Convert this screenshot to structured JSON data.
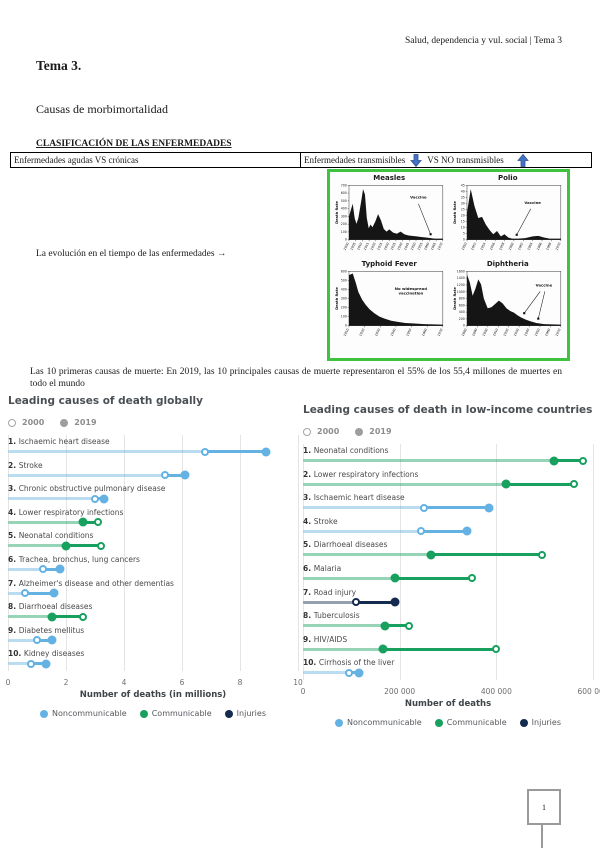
{
  "page": {
    "header": "Salud, dependencia y vul. social | Tema 3",
    "title": "Tema 3.",
    "subtitle": "Causas de morbimortalidad",
    "section_heading": "CLASIFICACIÓN DE LAS ENFERMEDADES",
    "classification_table": {
      "left_cell": "Enfermedades agudas VS crónicas",
      "right_cell_part1": "Enfermedades transmisibles",
      "right_cell_part2": "VS NO transmisibles"
    },
    "evolution_note": "La evolución en el tiempo de las enfermedades →",
    "intro_paragraph": "Las 10 primeras causas de muerte: En 2019, las 10 principales causas de muerte representaron el 55% de los 55,4 millones de muertes en todo el mundo",
    "page_number": "1",
    "arrow_color": "#4472c4"
  },
  "epidemic_figure": {
    "border_color": "#3fc23f",
    "charts": [
      {
        "title": "Measles",
        "ylabel": "Death Rate",
        "annotation": "Vaccine",
        "ann_pos": [
          74,
          76
        ],
        "arrows": [
          [
            74,
            66,
            87,
            10
          ]
        ],
        "yticks": [
          "0",
          "100",
          "200",
          "300",
          "400",
          "500",
          "600",
          "700"
        ],
        "xticks": [
          "1900",
          "1905",
          "1910",
          "1915",
          "1920",
          "1925",
          "1930",
          "1935",
          "1940",
          "1945",
          "1950",
          "1955",
          "1960",
          "1965",
          "1970"
        ],
        "points": [
          [
            0,
            43
          ],
          [
            2,
            55
          ],
          [
            4,
            66
          ],
          [
            6,
            40
          ],
          [
            8,
            29
          ],
          [
            10,
            40
          ],
          [
            13,
            70
          ],
          [
            15,
            93
          ],
          [
            17,
            83
          ],
          [
            19,
            40
          ],
          [
            21,
            21
          ],
          [
            23,
            28
          ],
          [
            25,
            23
          ],
          [
            28,
            33
          ],
          [
            31,
            47
          ],
          [
            34,
            36
          ],
          [
            37,
            20
          ],
          [
            40,
            15
          ],
          [
            43,
            19
          ],
          [
            47,
            13
          ],
          [
            51,
            11
          ],
          [
            55,
            15
          ],
          [
            59,
            10
          ],
          [
            63,
            8
          ],
          [
            67,
            7
          ],
          [
            72,
            6
          ],
          [
            77,
            5
          ],
          [
            82,
            4
          ],
          [
            87,
            3
          ],
          [
            91,
            2
          ],
          [
            100,
            2
          ]
        ]
      },
      {
        "title": "Polio",
        "ylabel": "Death Rate",
        "annotation": "Vaccine",
        "ann_pos": [
          70,
          66
        ],
        "arrows": [
          [
            68,
            57,
            53,
            9
          ]
        ],
        "yticks": [
          "0",
          "5",
          "10",
          "15",
          "20",
          "25",
          "30",
          "35",
          "40",
          "45"
        ],
        "xticks": [
          "1950",
          "1952",
          "1954",
          "1956",
          "1958",
          "1960",
          "1962",
          "1964",
          "1966",
          "1968",
          "1970"
        ],
        "points": [
          [
            0,
            50
          ],
          [
            4,
            93
          ],
          [
            8,
            62
          ],
          [
            12,
            40
          ],
          [
            16,
            42
          ],
          [
            20,
            28
          ],
          [
            24,
            18
          ],
          [
            28,
            10
          ],
          [
            32,
            16
          ],
          [
            36,
            6
          ],
          [
            40,
            10
          ],
          [
            44,
            4
          ],
          [
            48,
            2
          ],
          [
            55,
            2
          ],
          [
            62,
            3
          ],
          [
            70,
            6
          ],
          [
            76,
            7
          ],
          [
            82,
            4
          ],
          [
            88,
            2
          ],
          [
            100,
            2
          ]
        ]
      },
      {
        "title": "Typhoid Fever",
        "ylabel": "Death Rate",
        "annotation": "No widespread\nvaccination",
        "ann_pos": [
          66,
          66
        ],
        "arrows": [],
        "yticks": [
          "0",
          "100",
          "200",
          "300",
          "400",
          "500",
          "600"
        ],
        "xticks": [
          "1910",
          "1920",
          "1930",
          "1940",
          "1950",
          "1960",
          "1970"
        ],
        "points": [
          [
            0,
            93
          ],
          [
            4,
            96
          ],
          [
            7,
            80
          ],
          [
            10,
            62
          ],
          [
            14,
            48
          ],
          [
            18,
            38
          ],
          [
            22,
            30
          ],
          [
            27,
            23
          ],
          [
            32,
            17
          ],
          [
            38,
            13
          ],
          [
            45,
            9
          ],
          [
            52,
            7
          ],
          [
            60,
            5
          ],
          [
            70,
            4
          ],
          [
            80,
            3
          ],
          [
            100,
            2
          ]
        ]
      },
      {
        "title": "Diphtheria",
        "ylabel": "Death Rate",
        "annotation": "Vaccine",
        "ann_pos": [
          82,
          72
        ],
        "arrows": [
          [
            78,
            63,
            61,
            23
          ],
          [
            83,
            63,
            76,
            13
          ]
        ],
        "yticks": [
          "0",
          "200",
          "400",
          "600",
          "800",
          "1000",
          "1200",
          "1400",
          "1600"
        ],
        "xticks": [
          "1880",
          "1890",
          "1900",
          "1910",
          "1920",
          "1930",
          "1940",
          "1950",
          "1960",
          "1970"
        ],
        "points": [
          [
            0,
            94
          ],
          [
            3,
            80
          ],
          [
            6,
            55
          ],
          [
            9,
            68
          ],
          [
            12,
            85
          ],
          [
            15,
            76
          ],
          [
            18,
            50
          ],
          [
            22,
            32
          ],
          [
            26,
            34
          ],
          [
            30,
            40
          ],
          [
            34,
            46
          ],
          [
            38,
            41
          ],
          [
            42,
            32
          ],
          [
            46,
            27
          ],
          [
            50,
            24
          ],
          [
            54,
            19
          ],
          [
            58,
            15
          ],
          [
            63,
            11
          ],
          [
            68,
            8
          ],
          [
            74,
            5
          ],
          [
            82,
            3
          ],
          [
            100,
            2
          ]
        ]
      }
    ]
  },
  "chart_data": [
    {
      "type": "dumbbell",
      "title": "Leading causes of death globally",
      "legend_years": [
        "2000",
        "2019"
      ],
      "xlabel": "Number of deaths (in millions)",
      "xlim": [
        0,
        10
      ],
      "xticks": [
        0,
        2,
        4,
        6,
        8,
        10
      ],
      "xtick_labels": [
        "0",
        "2",
        "4",
        "6",
        "8",
        "10"
      ],
      "categories": [
        {
          "rank": "1.",
          "label": "Ischaemic heart disease",
          "group": "Noncommunicable",
          "v2000": 6.8,
          "v2019": 8.9
        },
        {
          "rank": "2.",
          "label": "Stroke",
          "group": "Noncommunicable",
          "v2000": 5.4,
          "v2019": 6.1
        },
        {
          "rank": "3.",
          "label": "Chronic obstructive pulmonary disease",
          "group": "Noncommunicable",
          "v2000": 3.0,
          "v2019": 3.3
        },
        {
          "rank": "4.",
          "label": "Lower respiratory infections",
          "group": "Communicable",
          "v2000": 3.1,
          "v2019": 2.6
        },
        {
          "rank": "5.",
          "label": "Neonatal conditions",
          "group": "Communicable",
          "v2000": 3.2,
          "v2019": 2.0
        },
        {
          "rank": "6.",
          "label": "Trachea, bronchus, lung cancers",
          "group": "Noncommunicable",
          "v2000": 1.2,
          "v2019": 1.8
        },
        {
          "rank": "7.",
          "label": "Alzheimer's disease and other dementias",
          "group": "Noncommunicable",
          "v2000": 0.6,
          "v2019": 1.6
        },
        {
          "rank": "8.",
          "label": "Diarrhoeal diseases",
          "group": "Communicable",
          "v2000": 2.6,
          "v2019": 1.5
        },
        {
          "rank": "9.",
          "label": "Diabetes mellitus",
          "group": "Noncommunicable",
          "v2000": 1.0,
          "v2019": 1.5
        },
        {
          "rank": "10.",
          "label": "Kidney diseases",
          "group": "Noncommunicable",
          "v2000": 0.8,
          "v2019": 1.3
        }
      ],
      "legend": [
        {
          "label": "Noncommunicable",
          "color": "#64b2e4"
        },
        {
          "label": "Communicable",
          "color": "#18a05f"
        },
        {
          "label": "Injuries",
          "color": "#142a4e"
        }
      ]
    },
    {
      "type": "dumbbell",
      "title": "Leading causes of death in low-income countries",
      "legend_years": [
        "2000",
        "2019"
      ],
      "xlabel": "Number of deaths",
      "xlim": [
        0,
        600000
      ],
      "xticks": [
        0,
        200000,
        400000,
        600000
      ],
      "xtick_labels": [
        "0",
        "200 000",
        "400 000",
        "600 000"
      ],
      "categories": [
        {
          "rank": "1.",
          "label": "Neonatal conditions",
          "group": "Communicable",
          "v2000": 580000,
          "v2019": 520000
        },
        {
          "rank": "2.",
          "label": "Lower respiratory infections",
          "group": "Communicable",
          "v2000": 560000,
          "v2019": 420000
        },
        {
          "rank": "3.",
          "label": "Ischaemic heart disease",
          "group": "Noncommunicable",
          "v2000": 250000,
          "v2019": 385000
        },
        {
          "rank": "4.",
          "label": "Stroke",
          "group": "Noncommunicable",
          "v2000": 245000,
          "v2019": 340000
        },
        {
          "rank": "5.",
          "label": "Diarrhoeal diseases",
          "group": "Communicable",
          "v2000": 495000,
          "v2019": 265000
        },
        {
          "rank": "6.",
          "label": "Malaria",
          "group": "Communicable",
          "v2000": 350000,
          "v2019": 190000
        },
        {
          "rank": "7.",
          "label": "Road injury",
          "group": "Injuries",
          "v2000": 110000,
          "v2019": 190000
        },
        {
          "rank": "8.",
          "label": "Tuberculosis",
          "group": "Communicable",
          "v2000": 220000,
          "v2019": 170000
        },
        {
          "rank": "9.",
          "label": "HIV/AIDS",
          "group": "Communicable",
          "v2000": 400000,
          "v2019": 165000
        },
        {
          "rank": "10.",
          "label": "Cirrhosis of the liver",
          "group": "Noncommunicable",
          "v2000": 95000,
          "v2019": 115000
        }
      ],
      "legend": [
        {
          "label": "Noncommunicable",
          "color": "#64b2e4"
        },
        {
          "label": "Communicable",
          "color": "#18a05f"
        },
        {
          "label": "Injuries",
          "color": "#142a4e"
        }
      ]
    }
  ]
}
